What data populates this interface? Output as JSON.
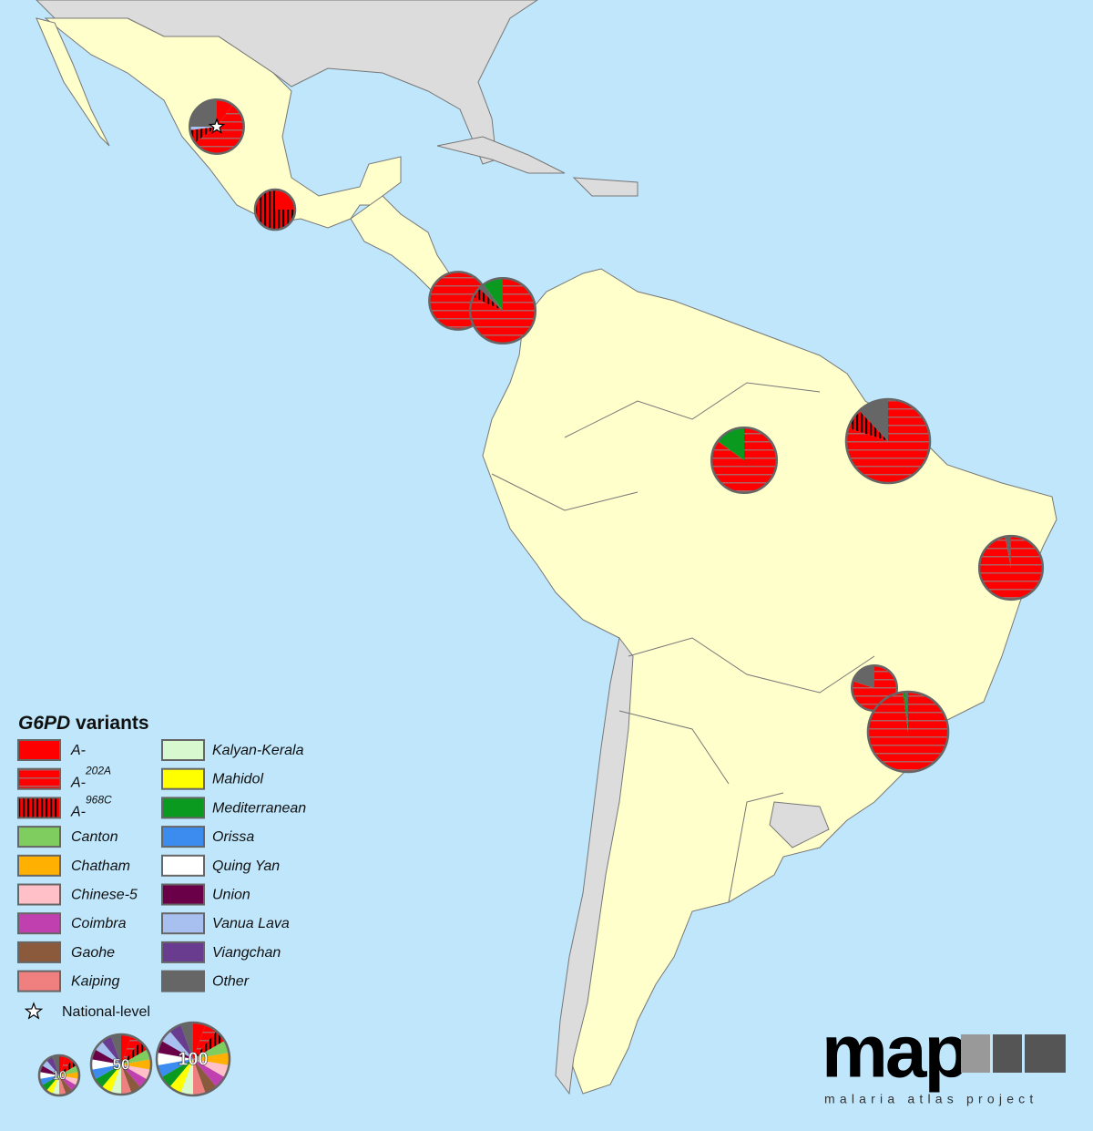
{
  "legend": {
    "title_italic": "G6PD",
    "title_rest": " variants",
    "items": [
      {
        "label": "A-",
        "color": "#ff0000",
        "pattern": "solid"
      },
      {
        "label": "A-",
        "sup": "202A",
        "color": "#ff0000",
        "pattern": "horizontal"
      },
      {
        "label": "A-",
        "sup": "968C",
        "color": "#ff0000",
        "pattern": "vertical"
      },
      {
        "label": "Canton",
        "color": "#7fcc5f",
        "pattern": "solid"
      },
      {
        "label": "Chatham",
        "color": "#ffb000",
        "pattern": "solid"
      },
      {
        "label": "Chinese-5",
        "color": "#ffc0c8",
        "pattern": "solid"
      },
      {
        "label": "Coimbra",
        "color": "#c040b0",
        "pattern": "solid"
      },
      {
        "label": "Gaohe",
        "color": "#8b5a3c",
        "pattern": "solid"
      },
      {
        "label": "Kaiping",
        "color": "#f08080",
        "pattern": "solid"
      },
      {
        "label": "Kalyan-Kerala",
        "color": "#d8f8d0",
        "pattern": "solid"
      },
      {
        "label": "Mahidol",
        "color": "#ffff00",
        "pattern": "solid"
      },
      {
        "label": "Mediterranean",
        "color": "#0a9a20",
        "pattern": "solid"
      },
      {
        "label": "Orissa",
        "color": "#3c8cf0",
        "pattern": "solid"
      },
      {
        "label": "Quing Yan",
        "color": "#ffffff",
        "pattern": "solid"
      },
      {
        "label": "Union",
        "color": "#6a0048",
        "pattern": "solid"
      },
      {
        "label": "Vanua Lava",
        "color": "#a8c0f0",
        "pattern": "solid"
      },
      {
        "label": "Viangchan",
        "color": "#6a3c90",
        "pattern": "solid"
      },
      {
        "label": "Other",
        "color": "#666666",
        "pattern": "solid"
      }
    ],
    "national_level": "National-level",
    "size_legend": [
      10,
      50,
      100
    ]
  },
  "sites": [
    {
      "n": 38,
      "national": true,
      "slices": [
        {
          "variant": "A-",
          "value": 10
        },
        {
          "variant": "A-202A",
          "value": 55
        },
        {
          "variant": "A-968C",
          "value": 8
        },
        {
          "variant": "Vanua Lava",
          "value": 2
        },
        {
          "variant": "Other",
          "value": 25
        }
      ]
    },
    {
      "n": 10,
      "slices": [
        {
          "variant": "A-",
          "value": 25
        },
        {
          "variant": "A-968C",
          "value": 75
        }
      ]
    },
    {
      "n": 45,
      "slices": [
        {
          "variant": "A-202A",
          "value": 100
        }
      ]
    },
    {
      "n": 70,
      "slices": [
        {
          "variant": "A-202A",
          "value": 82
        },
        {
          "variant": "A-968C",
          "value": 5
        },
        {
          "variant": "Other",
          "value": 3
        },
        {
          "variant": "Mediterranean",
          "value": 10
        }
      ]
    },
    {
      "n": 70,
      "slices": [
        {
          "variant": "A-202A",
          "value": 85
        },
        {
          "variant": "Mediterranean",
          "value": 15
        }
      ]
    },
    {
      "n": 143,
      "slices": [
        {
          "variant": "A-202A",
          "value": 80
        },
        {
          "variant": "A-968C",
          "value": 8
        },
        {
          "variant": "Other",
          "value": 12
        }
      ]
    },
    {
      "n": 63,
      "slices": [
        {
          "variant": "A-202A",
          "value": 97
        },
        {
          "variant": "Other",
          "value": 3
        }
      ]
    },
    {
      "n": 20,
      "slices": [
        {
          "variant": "A-202A",
          "value": 80
        },
        {
          "variant": "Other",
          "value": 20
        }
      ]
    },
    {
      "n": 129,
      "slices": [
        {
          "variant": "A-202A",
          "value": 98
        },
        {
          "variant": "Mediterranean",
          "value": 1
        },
        {
          "variant": "Other",
          "value": 1
        }
      ]
    }
  ],
  "logo": {
    "text": "map",
    "subtitle": "malaria atlas project"
  }
}
